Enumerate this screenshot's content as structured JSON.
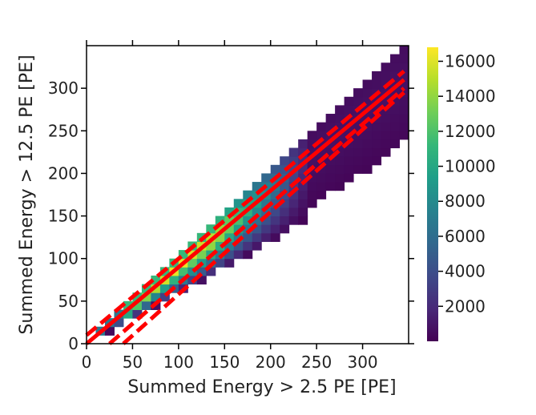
{
  "chart_data": {
    "type": "heatmap",
    "title": "",
    "xlabel": "Summed Energy > 2.5 PE [PE]",
    "ylabel": "Summed Energy > 12.5 PE [PE]",
    "xlim": [
      0,
      350
    ],
    "ylim": [
      0,
      350
    ],
    "xticks": [
      0,
      50,
      100,
      150,
      200,
      250,
      300
    ],
    "yticks": [
      0,
      50,
      100,
      150,
      200,
      250,
      300
    ],
    "bin_size": 10,
    "colormap": "viridis",
    "colorbar": {
      "min": 0,
      "max": 16800,
      "ticks": [
        2000,
        4000,
        6000,
        8000,
        10000,
        12000,
        14000,
        16000
      ]
    },
    "bands": [
      {
        "x_from": 140,
        "x_to": 250,
        "y_from": 60,
        "y_to": 250,
        "peak": 4000
      },
      {
        "x_from": 40,
        "x_to": 140,
        "y_from": 10,
        "y_to": 130,
        "peak": 16500
      }
    ],
    "lines": [
      {
        "style": "solid",
        "color": "#ff0000",
        "x": [
          0,
          345
        ],
        "y": [
          0,
          310
        ]
      },
      {
        "style": "dashed",
        "color": "#ff0000",
        "x": [
          0,
          345
        ],
        "y": [
          10,
          320
        ]
      },
      {
        "style": "dashed",
        "color": "#ff0000",
        "x": [
          25,
          345
        ],
        "y": [
          0,
          300
        ]
      },
      {
        "style": "dashed",
        "color": "#ff0000",
        "x": [
          40,
          345
        ],
        "y": [
          0,
          295
        ]
      }
    ]
  }
}
